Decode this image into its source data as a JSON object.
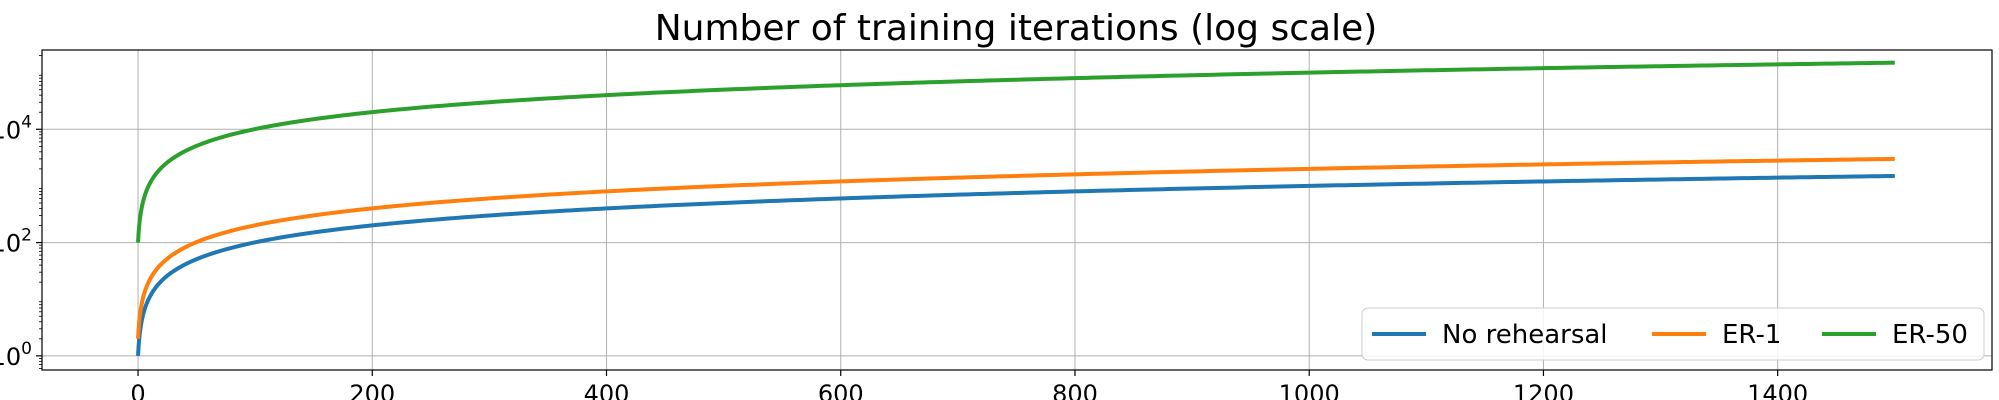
{
  "chart_data": {
    "type": "line",
    "title": "Number of training iterations (log scale)",
    "xlabel": "",
    "ylabel": "",
    "yscale": "log",
    "xlim": [
      -82,
      1583
    ],
    "ylim_log10": [
      -0.25,
      5.4
    ],
    "x_ticks": [
      0,
      200,
      400,
      600,
      800,
      1000,
      1200,
      1400
    ],
    "y_ticks": [
      {
        "exp": 0,
        "base": "10",
        "power": "0"
      },
      {
        "exp": 2,
        "base": "10",
        "power": "2"
      },
      {
        "exp": 4,
        "base": "10",
        "power": "4"
      }
    ],
    "grid": true,
    "legend": {
      "placement": "lower-right",
      "columns": 3
    },
    "series": [
      {
        "name": "No rehearsal",
        "color": "#1f77b4",
        "x_max": 1500,
        "y_start": 1,
        "y_end": 1500
      },
      {
        "name": "ER-1",
        "color": "#ff7f0e",
        "x_max": 1500,
        "y_start": 2,
        "y_end": 3000
      },
      {
        "name": "ER-50",
        "color": "#2ca02c",
        "x_max": 1500,
        "y_start": 100,
        "y_end": 150000
      }
    ]
  }
}
